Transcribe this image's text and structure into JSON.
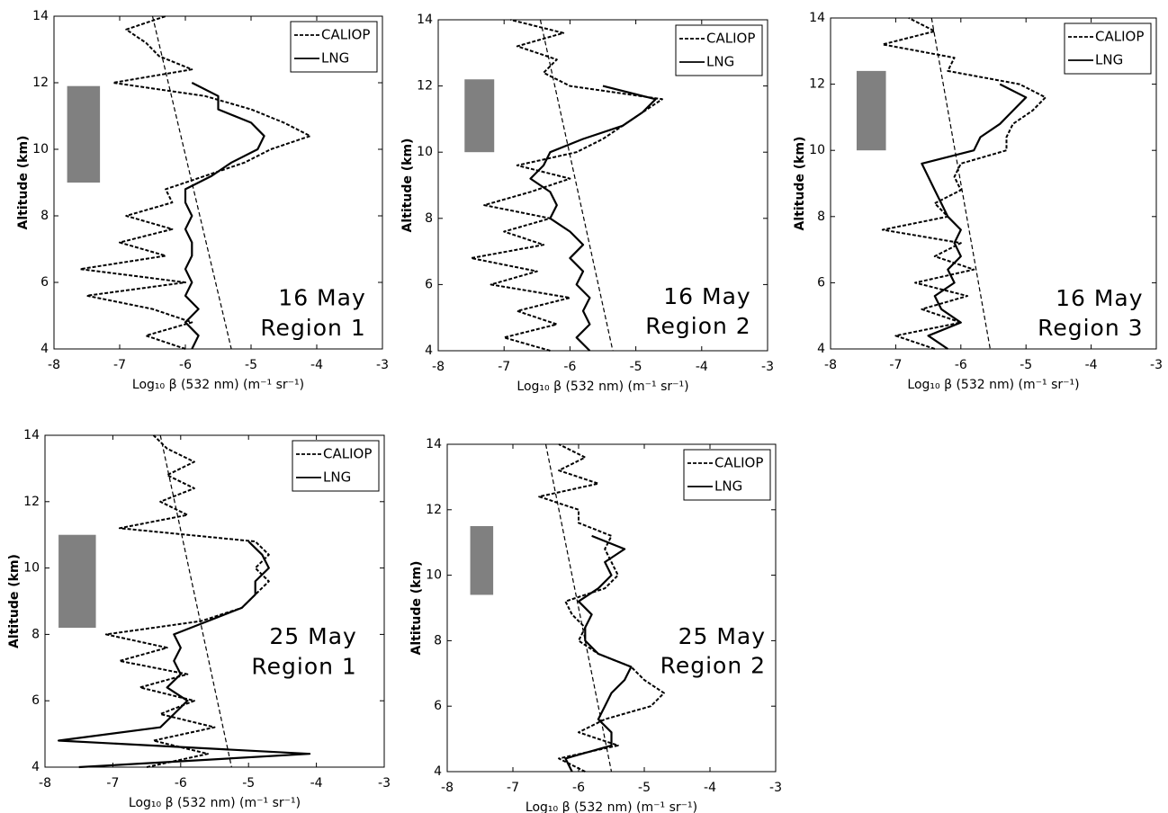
{
  "chart_data": [
    {
      "type": "line",
      "xlabel": "Log₁₀ β (532 nm) (m⁻¹ sr⁻¹)",
      "ylabel": "Altitude (km)",
      "xlim": [
        -8,
        -3
      ],
      "ylim": [
        4,
        14
      ],
      "xticks": [
        -8,
        -7,
        -6,
        -5,
        -4,
        -3
      ],
      "yticks": [
        4,
        6,
        8,
        10,
        12,
        14
      ],
      "legend": "upper right",
      "annotation": [
        "16 May",
        "Region 1"
      ],
      "y": [
        4.0,
        4.4,
        4.8,
        5.2,
        5.6,
        6.0,
        6.4,
        6.8,
        7.2,
        7.6,
        8.0,
        8.4,
        8.8,
        9.2,
        9.6,
        10.0,
        10.4,
        10.8,
        11.2,
        11.6,
        12.0,
        12.4,
        12.8,
        13.2,
        13.6,
        14.0
      ],
      "series": [
        {
          "name": "CALIOP",
          "color": "#000000",
          "linestyle": "dashed",
          "values": [
            -6.0,
            -6.6,
            -5.9,
            -6.5,
            -7.5,
            -6.0,
            -7.6,
            -6.3,
            -7.0,
            -6.2,
            -6.9,
            -6.2,
            -6.3,
            -5.7,
            -5.1,
            -4.7,
            -4.1,
            -4.5,
            -5.0,
            -5.7,
            -7.1,
            -5.9,
            -6.4,
            -6.6,
            -6.9,
            -6.3
          ]
        },
        {
          "name": "LNG",
          "color": "#000000",
          "linestyle": "solid",
          "values": [
            -5.9,
            -5.8,
            -6.0,
            -5.8,
            -6.0,
            -5.9,
            -6.0,
            -5.9,
            -5.9,
            -6.0,
            -5.9,
            -6.0,
            -6.0,
            -5.6,
            -5.3,
            -4.9,
            -4.8,
            -5.0,
            -5.5,
            -5.5,
            -5.9,
            null,
            null,
            null,
            null,
            null
          ]
        }
      ],
      "reference": {
        "x": [
          -6.5,
          -5.3
        ],
        "y": [
          14,
          4
        ]
      },
      "shaded": {
        "xlim": [
          -7.8,
          -7.3
        ],
        "ylim": [
          9,
          11.9
        ],
        "color": "#808080"
      }
    },
    {
      "type": "line",
      "xlabel": "Log₁₀ β (532 nm) (m⁻¹ sr⁻¹)",
      "ylabel": "Altitude (km)",
      "xlim": [
        -8,
        -3
      ],
      "ylim": [
        4,
        14
      ],
      "xticks": [
        -8,
        -7,
        -6,
        -5,
        -4,
        -3
      ],
      "yticks": [
        4,
        6,
        8,
        10,
        12,
        14
      ],
      "legend": "upper right",
      "annotation": [
        "16 May",
        "Region 2"
      ],
      "y": [
        4.0,
        4.4,
        4.8,
        5.2,
        5.6,
        6.0,
        6.4,
        6.8,
        7.2,
        7.6,
        8.0,
        8.4,
        8.8,
        9.2,
        9.6,
        10.0,
        10.4,
        10.8,
        11.2,
        11.6,
        12.0,
        12.4,
        12.8,
        13.2,
        13.6,
        14.0
      ],
      "series": [
        {
          "name": "CALIOP",
          "color": "#000000",
          "linestyle": "dashed",
          "values": [
            -6.3,
            -7.0,
            -6.2,
            -6.8,
            -6.0,
            -7.2,
            -6.5,
            -7.5,
            -6.4,
            -7.0,
            -6.3,
            -7.3,
            -6.6,
            -6.0,
            -6.8,
            -5.9,
            -5.5,
            -5.2,
            -4.9,
            -4.6,
            -6.0,
            -6.4,
            -6.2,
            -6.8,
            -6.1,
            -6.9
          ]
        },
        {
          "name": "LNG",
          "color": "#000000",
          "linestyle": "solid",
          "values": [
            -5.7,
            -5.9,
            -5.7,
            -5.8,
            -5.7,
            -5.9,
            -5.8,
            -6.0,
            -5.8,
            -6.0,
            -6.3,
            -6.2,
            -6.3,
            -6.6,
            -6.4,
            -6.3,
            -5.8,
            -5.2,
            -4.9,
            -4.7,
            -5.5,
            null,
            null,
            null,
            null,
            null
          ]
        }
      ],
      "reference": {
        "x": [
          -6.45,
          -5.35
        ],
        "y": [
          14,
          4
        ]
      },
      "shaded": {
        "xlim": [
          -7.6,
          -7.15
        ],
        "ylim": [
          10,
          12.2
        ],
        "color": "#808080"
      }
    },
    {
      "type": "line",
      "xlabel": "Log₁₀ β (532 nm) (m⁻¹ sr⁻¹)",
      "ylabel": "Altitude (km)",
      "xlim": [
        -8,
        -3
      ],
      "ylim": [
        4,
        14
      ],
      "xticks": [
        -8,
        -7,
        -6,
        -5,
        -4,
        -3
      ],
      "yticks": [
        4,
        6,
        8,
        10,
        12,
        14
      ],
      "legend": "upper right",
      "annotation": [
        "16 May",
        "Region 3"
      ],
      "y": [
        4.0,
        4.4,
        4.8,
        5.2,
        5.6,
        6.0,
        6.4,
        6.8,
        7.2,
        7.6,
        8.0,
        8.4,
        8.8,
        9.2,
        9.6,
        10.0,
        10.4,
        10.8,
        11.2,
        11.6,
        12.0,
        12.4,
        12.8,
        13.2,
        13.6,
        14.0
      ],
      "series": [
        {
          "name": "CALIOP",
          "color": "#000000",
          "linestyle": "dashed",
          "values": [
            -6.4,
            -7.0,
            -6.0,
            -6.6,
            -5.9,
            -6.7,
            -5.8,
            -6.4,
            -6.0,
            -7.2,
            -6.2,
            -6.4,
            -6.0,
            -6.1,
            -6.0,
            -5.3,
            -5.3,
            -5.2,
            -4.9,
            -4.7,
            -5.1,
            -6.2,
            -6.1,
            -7.2,
            -6.4,
            -6.8
          ]
        },
        {
          "name": "LNG",
          "color": "#000000",
          "linestyle": "solid",
          "values": [
            -6.2,
            -6.5,
            -6.0,
            -6.3,
            -6.4,
            -6.1,
            -6.2,
            -6.0,
            -6.1,
            -6.0,
            -6.2,
            -6.3,
            -6.4,
            -6.5,
            -6.6,
            -5.8,
            -5.7,
            -5.4,
            -5.2,
            -5.0,
            -5.4,
            null,
            null,
            null,
            null,
            null
          ]
        }
      ],
      "reference": {
        "x": [
          -6.45,
          -5.55
        ],
        "y": [
          14,
          4
        ]
      },
      "shaded": {
        "xlim": [
          -7.6,
          -7.15
        ],
        "ylim": [
          10,
          12.4
        ],
        "color": "#808080"
      }
    },
    {
      "type": "line",
      "xlabel": "Log₁₀ β (532 nm) (m⁻¹ sr⁻¹)",
      "ylabel": "Altitude (km)",
      "xlim": [
        -8,
        -3
      ],
      "ylim": [
        4,
        14
      ],
      "xticks": [
        -8,
        -7,
        -6,
        -5,
        -4,
        -3
      ],
      "yticks": [
        4,
        6,
        8,
        10,
        12,
        14
      ],
      "legend": "upper right",
      "annotation": [
        "25 May",
        "Region 1"
      ],
      "y": [
        4.0,
        4.4,
        4.8,
        5.2,
        5.6,
        6.0,
        6.4,
        6.8,
        7.2,
        7.6,
        8.0,
        8.4,
        8.8,
        9.2,
        9.6,
        10.0,
        10.4,
        10.8,
        11.2,
        11.6,
        12.0,
        12.4,
        12.8,
        13.2,
        13.6,
        14.0
      ],
      "series": [
        {
          "name": "CALIOP",
          "color": "#000000",
          "linestyle": "dashed",
          "values": [
            -6.5,
            -5.6,
            -6.4,
            -5.5,
            -6.3,
            -5.8,
            -6.6,
            -5.9,
            -6.9,
            -6.2,
            -7.1,
            -5.7,
            -5.1,
            -4.9,
            -4.7,
            -4.9,
            -4.7,
            -4.9,
            -6.9,
            -5.9,
            -6.3,
            -5.8,
            -6.2,
            -5.8,
            -6.2,
            -6.4
          ]
        },
        {
          "name": "LNG",
          "color": "#000000",
          "linestyle": "solid",
          "values": [
            -7.5,
            -4.1,
            -7.8,
            -6.3,
            -6.1,
            -5.9,
            -6.2,
            -6.0,
            -6.1,
            -6.0,
            -6.1,
            -5.6,
            -5.1,
            -4.9,
            -4.9,
            -4.7,
            -4.8,
            -5.0,
            null,
            null,
            null,
            null,
            null,
            null,
            null,
            null
          ]
        }
      ],
      "reference": {
        "x": [
          -6.3,
          -5.25
        ],
        "y": [
          14,
          4
        ]
      },
      "shaded": {
        "xlim": [
          -7.8,
          -7.25
        ],
        "ylim": [
          8.2,
          11
        ],
        "color": "#808080"
      }
    },
    {
      "type": "line",
      "xlabel": "Log₁₀ β (532 nm) (m⁻¹ sr⁻¹)",
      "ylabel": "Altitude (km)",
      "xlim": [
        -8,
        -3
      ],
      "ylim": [
        4,
        14
      ],
      "xticks": [
        -8,
        -7,
        -6,
        -5,
        -4,
        -3
      ],
      "yticks": [
        4,
        6,
        8,
        10,
        12,
        14
      ],
      "legend": "upper right",
      "annotation": [
        "25 May",
        "Region 2"
      ],
      "y": [
        4.0,
        4.4,
        4.8,
        5.2,
        5.6,
        6.0,
        6.4,
        6.8,
        7.2,
        7.6,
        8.0,
        8.4,
        8.8,
        9.2,
        9.6,
        10.0,
        10.4,
        10.8,
        11.2,
        11.6,
        12.0,
        12.4,
        12.8,
        13.2,
        13.6,
        14.0
      ],
      "series": [
        {
          "name": "CALIOP",
          "color": "#000000",
          "linestyle": "dashed",
          "values": [
            -5.9,
            -6.3,
            -5.4,
            -6.0,
            -5.6,
            -4.9,
            -4.7,
            -5.0,
            -5.2,
            -5.7,
            -6.0,
            -5.9,
            -6.1,
            -6.2,
            -5.6,
            -5.4,
            -5.5,
            -5.6,
            -5.5,
            -6.0,
            -6.0,
            -6.6,
            -5.7,
            -6.3,
            -5.9,
            -6.3
          ]
        },
        {
          "name": "LNG",
          "color": "#000000",
          "linestyle": "solid",
          "values": [
            -6.1,
            -6.2,
            -5.5,
            -5.5,
            -5.7,
            -5.6,
            -5.5,
            -5.3,
            -5.2,
            -5.7,
            -5.9,
            -5.9,
            -5.8,
            -6.0,
            -5.7,
            -5.5,
            -5.6,
            -5.3,
            -5.8,
            null,
            null,
            null,
            null,
            null,
            null,
            null
          ]
        }
      ],
      "reference": {
        "x": [
          -6.5,
          -5.5
        ],
        "y": [
          14,
          4
        ]
      },
      "shaded": {
        "xlim": [
          -7.65,
          -7.3
        ],
        "ylim": [
          9.4,
          11.5
        ],
        "color": "#808080"
      }
    }
  ]
}
